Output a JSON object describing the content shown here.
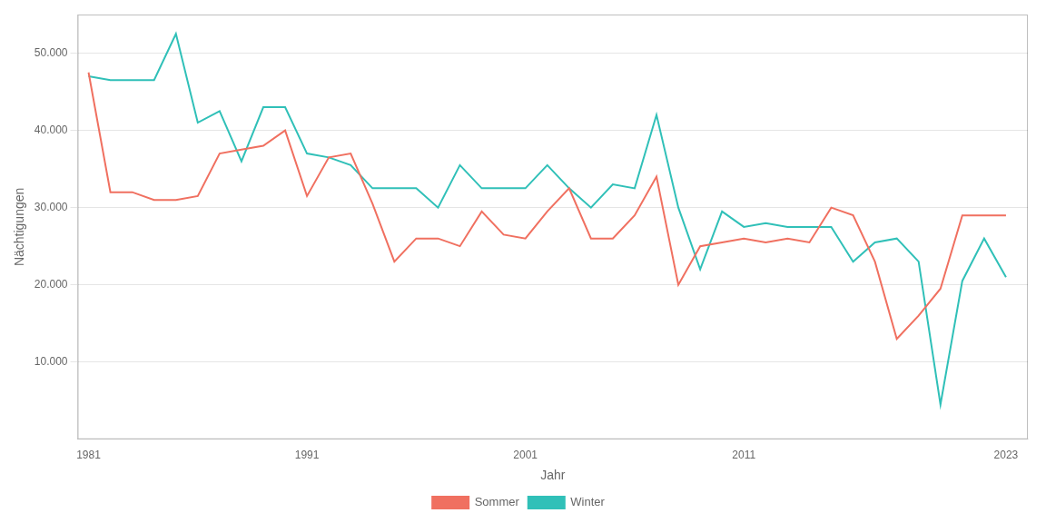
{
  "chart_data": {
    "type": "line",
    "xlabel": "Jahr",
    "ylabel": "Nächtigungen",
    "x": [
      1981,
      1982,
      1983,
      1984,
      1985,
      1986,
      1987,
      1988,
      1989,
      1990,
      1991,
      1992,
      1993,
      1994,
      1995,
      1996,
      1997,
      1998,
      1999,
      2000,
      2001,
      2002,
      2003,
      2004,
      2005,
      2006,
      2007,
      2008,
      2009,
      2010,
      2011,
      2012,
      2013,
      2014,
      2015,
      2016,
      2017,
      2018,
      2019,
      2020,
      2021,
      2022,
      2023
    ],
    "series": [
      {
        "name": "Sommer",
        "color": "#F07060",
        "values": [
          47500,
          32000,
          32000,
          31000,
          31000,
          31500,
          37000,
          37500,
          38000,
          40000,
          31500,
          36500,
          37000,
          30500,
          23000,
          26000,
          26000,
          25000,
          29500,
          26500,
          26000,
          29500,
          32500,
          26000,
          26000,
          29000,
          34000,
          20000,
          25000,
          25500,
          26000,
          25500,
          26000,
          25500,
          30000,
          29000,
          23000,
          13000,
          16000,
          19500,
          29000,
          29000,
          29000
        ]
      },
      {
        "name": "Winter",
        "color": "#30C0B8",
        "values": [
          47000,
          46500,
          46500,
          46500,
          52500,
          41000,
          42500,
          36000,
          43000,
          43000,
          37000,
          36500,
          35500,
          32500,
          32500,
          32500,
          30000,
          35500,
          32500,
          32500,
          32500,
          35500,
          32500,
          30000,
          33000,
          32500,
          42000,
          30000,
          22000,
          29500,
          27500,
          28000,
          27500,
          27500,
          27500,
          23000,
          25500,
          26000,
          23000,
          4500,
          20500,
          26000,
          21000
        ]
      }
    ],
    "xlim": [
      1980.5,
      2024
    ],
    "xticks": [
      1981,
      1991,
      2001,
      2011,
      2023
    ],
    "ylim": [
      0,
      55000
    ],
    "yticks": [
      {
        "value": 10000,
        "label": "10.000"
      },
      {
        "value": 20000,
        "label": "20.000"
      },
      {
        "value": 30000,
        "label": "30.000"
      },
      {
        "value": 40000,
        "label": "40.000"
      },
      {
        "value": 50000,
        "label": "50.000"
      }
    ],
    "grid": "y",
    "legend": "bottom"
  }
}
